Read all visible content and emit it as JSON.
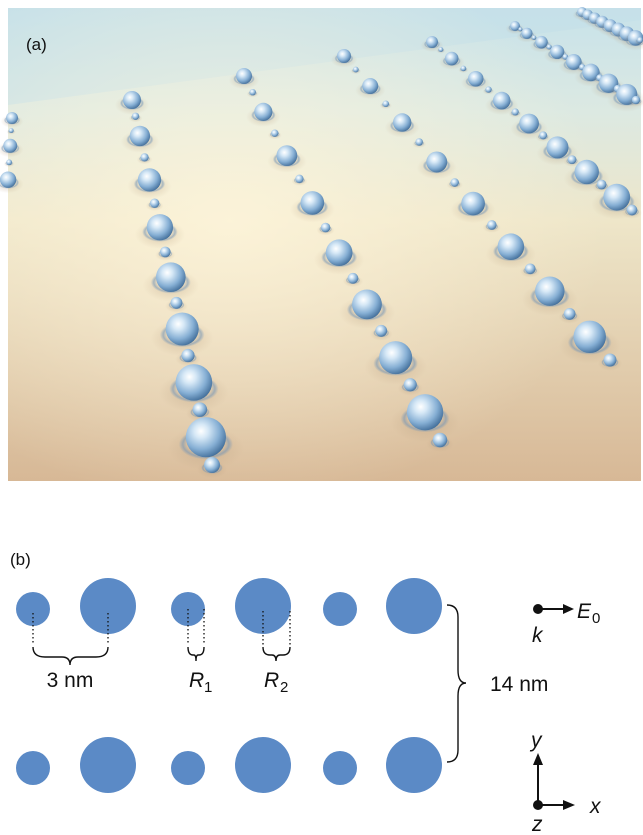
{
  "panel_a": {
    "label": "(a)",
    "colors": {
      "sky_top": "#c9e3ea",
      "sky_bottom": "#e6ecd9",
      "floor_near": "#d9bf9e",
      "floor_far": "#efe9cf",
      "sphere_light": "#e9f4fb",
      "sphere_mid": "#8fb8da",
      "sphere_dark": "#4f7faa"
    }
  },
  "panel_b": {
    "label": "(b)",
    "spacing_label": "3 nm",
    "r1_label": "R",
    "r1_sub": "1",
    "r2_label": "R",
    "r2_sub": "2",
    "row_gap_label": "14 nm",
    "field_label": "E",
    "field_sub": "0",
    "wavevector_label": "k",
    "axis_y": "y",
    "axis_x": "x",
    "axis_z": "z",
    "particle_color": "#5b8ac6"
  }
}
